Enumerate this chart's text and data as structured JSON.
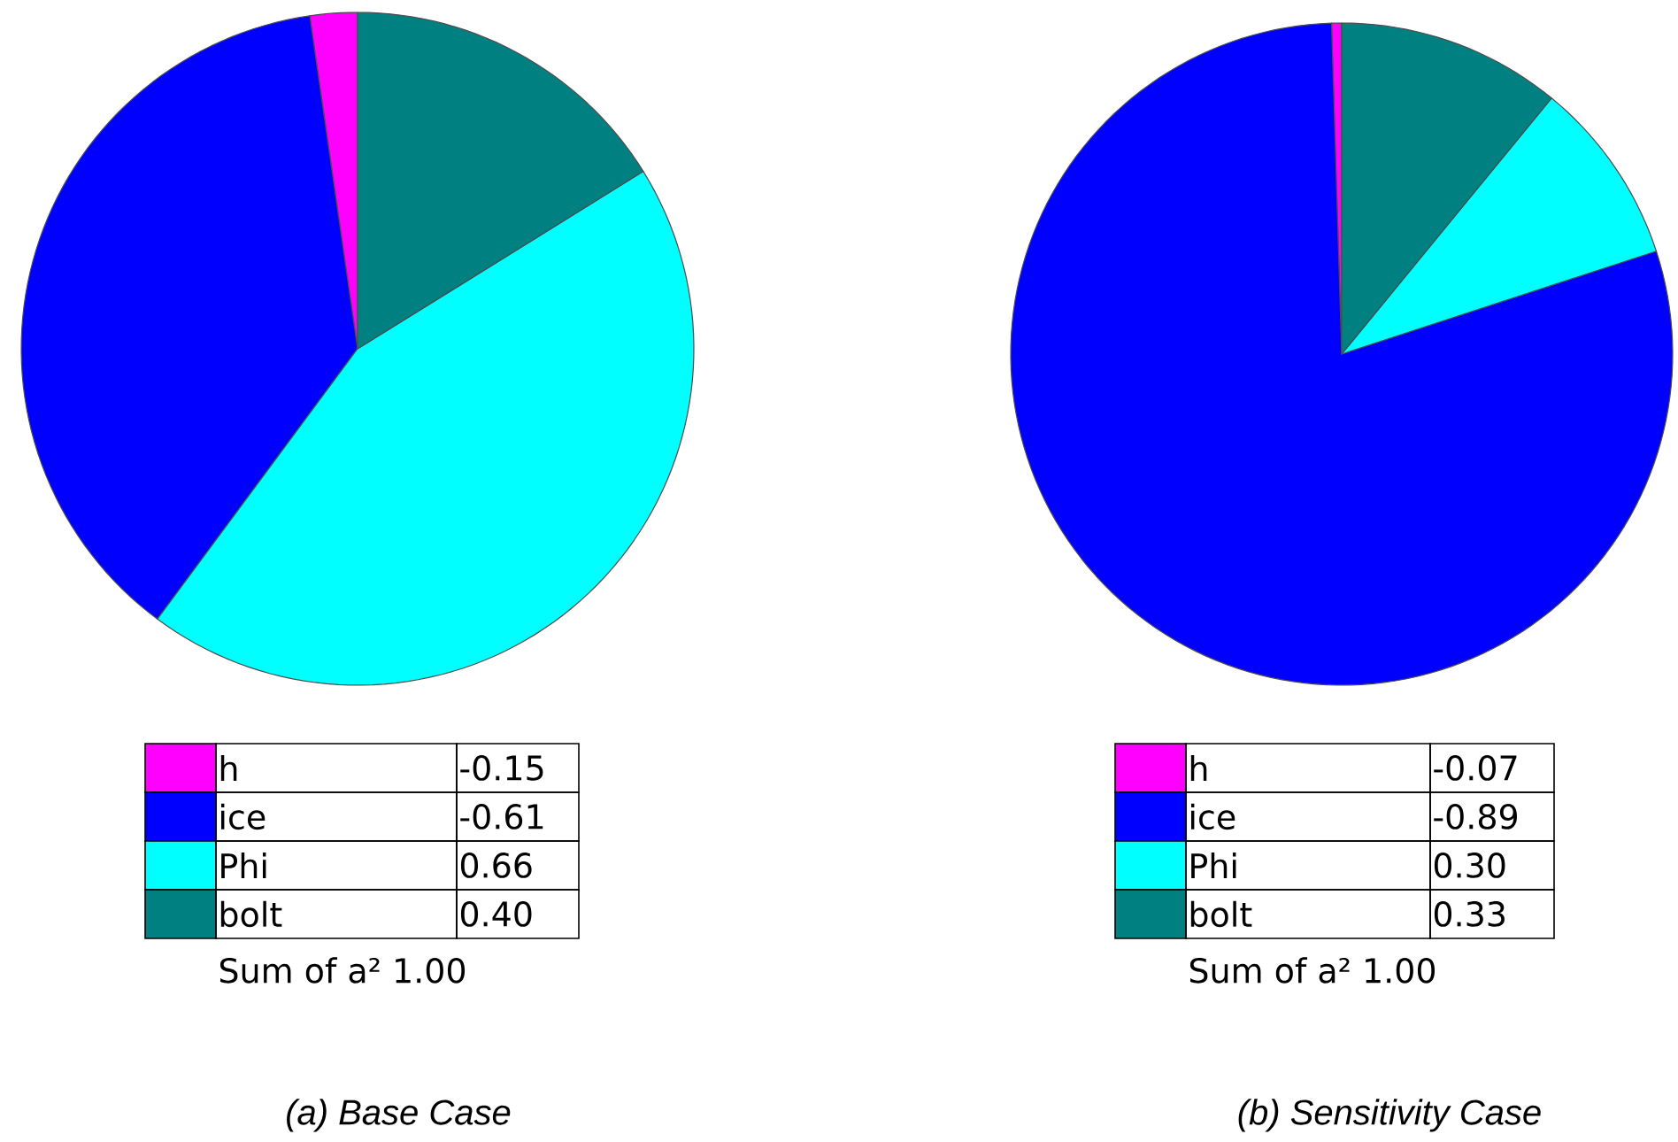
{
  "chart_data": [
    {
      "type": "pie",
      "title": "(a)  Base Case",
      "categories": [
        "h",
        "ice",
        "Phi",
        "bolt"
      ],
      "values": [
        2.27,
        37.58,
        43.99,
        16.16
      ],
      "colors": [
        "#ff00ff",
        "#0000ff",
        "#00ffff",
        "#008080"
      ],
      "legend": "bottom",
      "annotations": [
        "-0.15",
        "-0.61",
        "0.66",
        "0.40",
        "Sum of a² 1.00"
      ]
    },
    {
      "type": "pie",
      "title": "(b)  Sensitivity Case",
      "categories": [
        "h",
        "ice",
        "Phi",
        "bolt"
      ],
      "values": [
        0.49,
        79.54,
        9.04,
        10.93
      ],
      "colors": [
        "#ff00ff",
        "#0000ff",
        "#00ffff",
        "#008080"
      ],
      "legend": "bottom",
      "annotations": [
        "-0.07",
        "-0.89",
        "0.30",
        "0.33",
        "Sum of a² 1.00"
      ]
    }
  ]
}
